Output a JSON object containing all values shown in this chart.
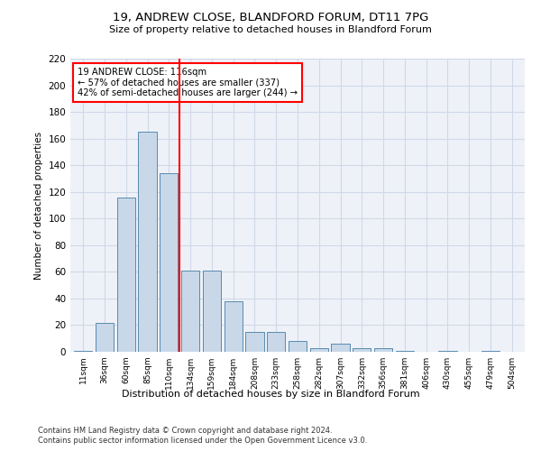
{
  "title1": "19, ANDREW CLOSE, BLANDFORD FORUM, DT11 7PG",
  "title2": "Size of property relative to detached houses in Blandford Forum",
  "xlabel": "Distribution of detached houses by size in Blandford Forum",
  "ylabel": "Number of detached properties",
  "bar_color": "#c8d8e8",
  "bar_edge_color": "#5a8ab0",
  "categories": [
    "11sqm",
    "36sqm",
    "60sqm",
    "85sqm",
    "110sqm",
    "134sqm",
    "159sqm",
    "184sqm",
    "208sqm",
    "233sqm",
    "258sqm",
    "282sqm",
    "307sqm",
    "332sqm",
    "356sqm",
    "381sqm",
    "406sqm",
    "430sqm",
    "455sqm",
    "479sqm",
    "504sqm"
  ],
  "values": [
    1,
    22,
    116,
    165,
    134,
    61,
    61,
    38,
    15,
    15,
    8,
    3,
    6,
    3,
    3,
    1,
    0,
    1,
    0,
    1,
    0
  ],
  "ylim": [
    0,
    220
  ],
  "yticks": [
    0,
    20,
    40,
    60,
    80,
    100,
    120,
    140,
    160,
    180,
    200,
    220
  ],
  "vline_x": 4.5,
  "annotation_line1": "19 ANDREW CLOSE: 116sqm",
  "annotation_line2": "← 57% of detached houses are smaller (337)",
  "annotation_line3": "42% of semi-detached houses are larger (244) →",
  "grid_color": "#d0d8e8",
  "background_color": "#eef2f8",
  "footer1": "Contains HM Land Registry data © Crown copyright and database right 2024.",
  "footer2": "Contains public sector information licensed under the Open Government Licence v3.0."
}
